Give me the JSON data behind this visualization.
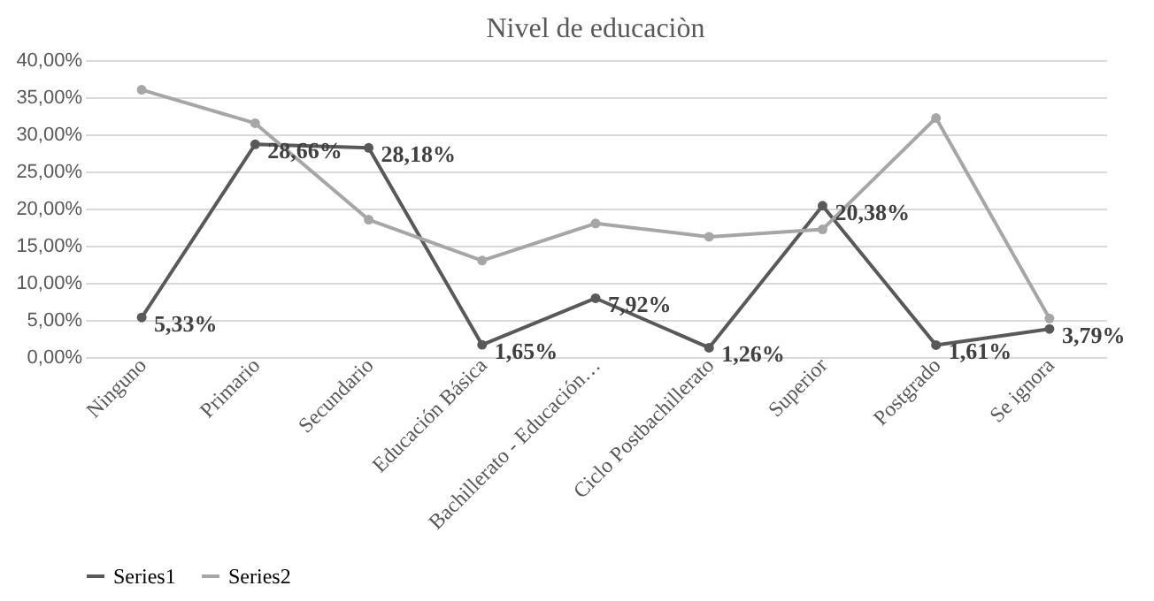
{
  "chart_data": {
    "type": "line",
    "title": "Nivel de educaciòn",
    "categories": [
      "Ninguno",
      "Primario",
      "Secundario",
      "Educación Básica",
      "Bachillerato - Educación…",
      "Ciclo Postbachillerato",
      "Superior",
      "Postgrado",
      "Se ignora"
    ],
    "series": [
      {
        "name": "Series1",
        "color": "#595959",
        "values": [
          5.33,
          28.66,
          28.18,
          1.65,
          7.92,
          1.26,
          20.38,
          1.61,
          3.79
        ],
        "value_labels": [
          "5,33%",
          "28,66%",
          "28,18%",
          "1,65%",
          "7,92%",
          "1,26%",
          "20,38%",
          "1,61%",
          "3,79%"
        ]
      },
      {
        "name": "Series2",
        "color": "#a6a6a6",
        "values": [
          36.0,
          31.5,
          18.5,
          13.0,
          18.0,
          16.2,
          17.2,
          32.2,
          5.2
        ]
      }
    ],
    "ylim": [
      0,
      40
    ],
    "yticks": [
      {
        "value": 0,
        "label": "0,00%"
      },
      {
        "value": 5,
        "label": "5,00%"
      },
      {
        "value": 10,
        "label": "10,00%"
      },
      {
        "value": 15,
        "label": "15,00%"
      },
      {
        "value": 20,
        "label": "20,00%"
      },
      {
        "value": 25,
        "label": "25,00%"
      },
      {
        "value": 30,
        "label": "30,00%"
      },
      {
        "value": 35,
        "label": "35,00%"
      },
      {
        "value": 40,
        "label": "40,00%"
      }
    ],
    "grid": "y",
    "legend": "bottom",
    "marker": "circle",
    "line_style": "solid"
  }
}
